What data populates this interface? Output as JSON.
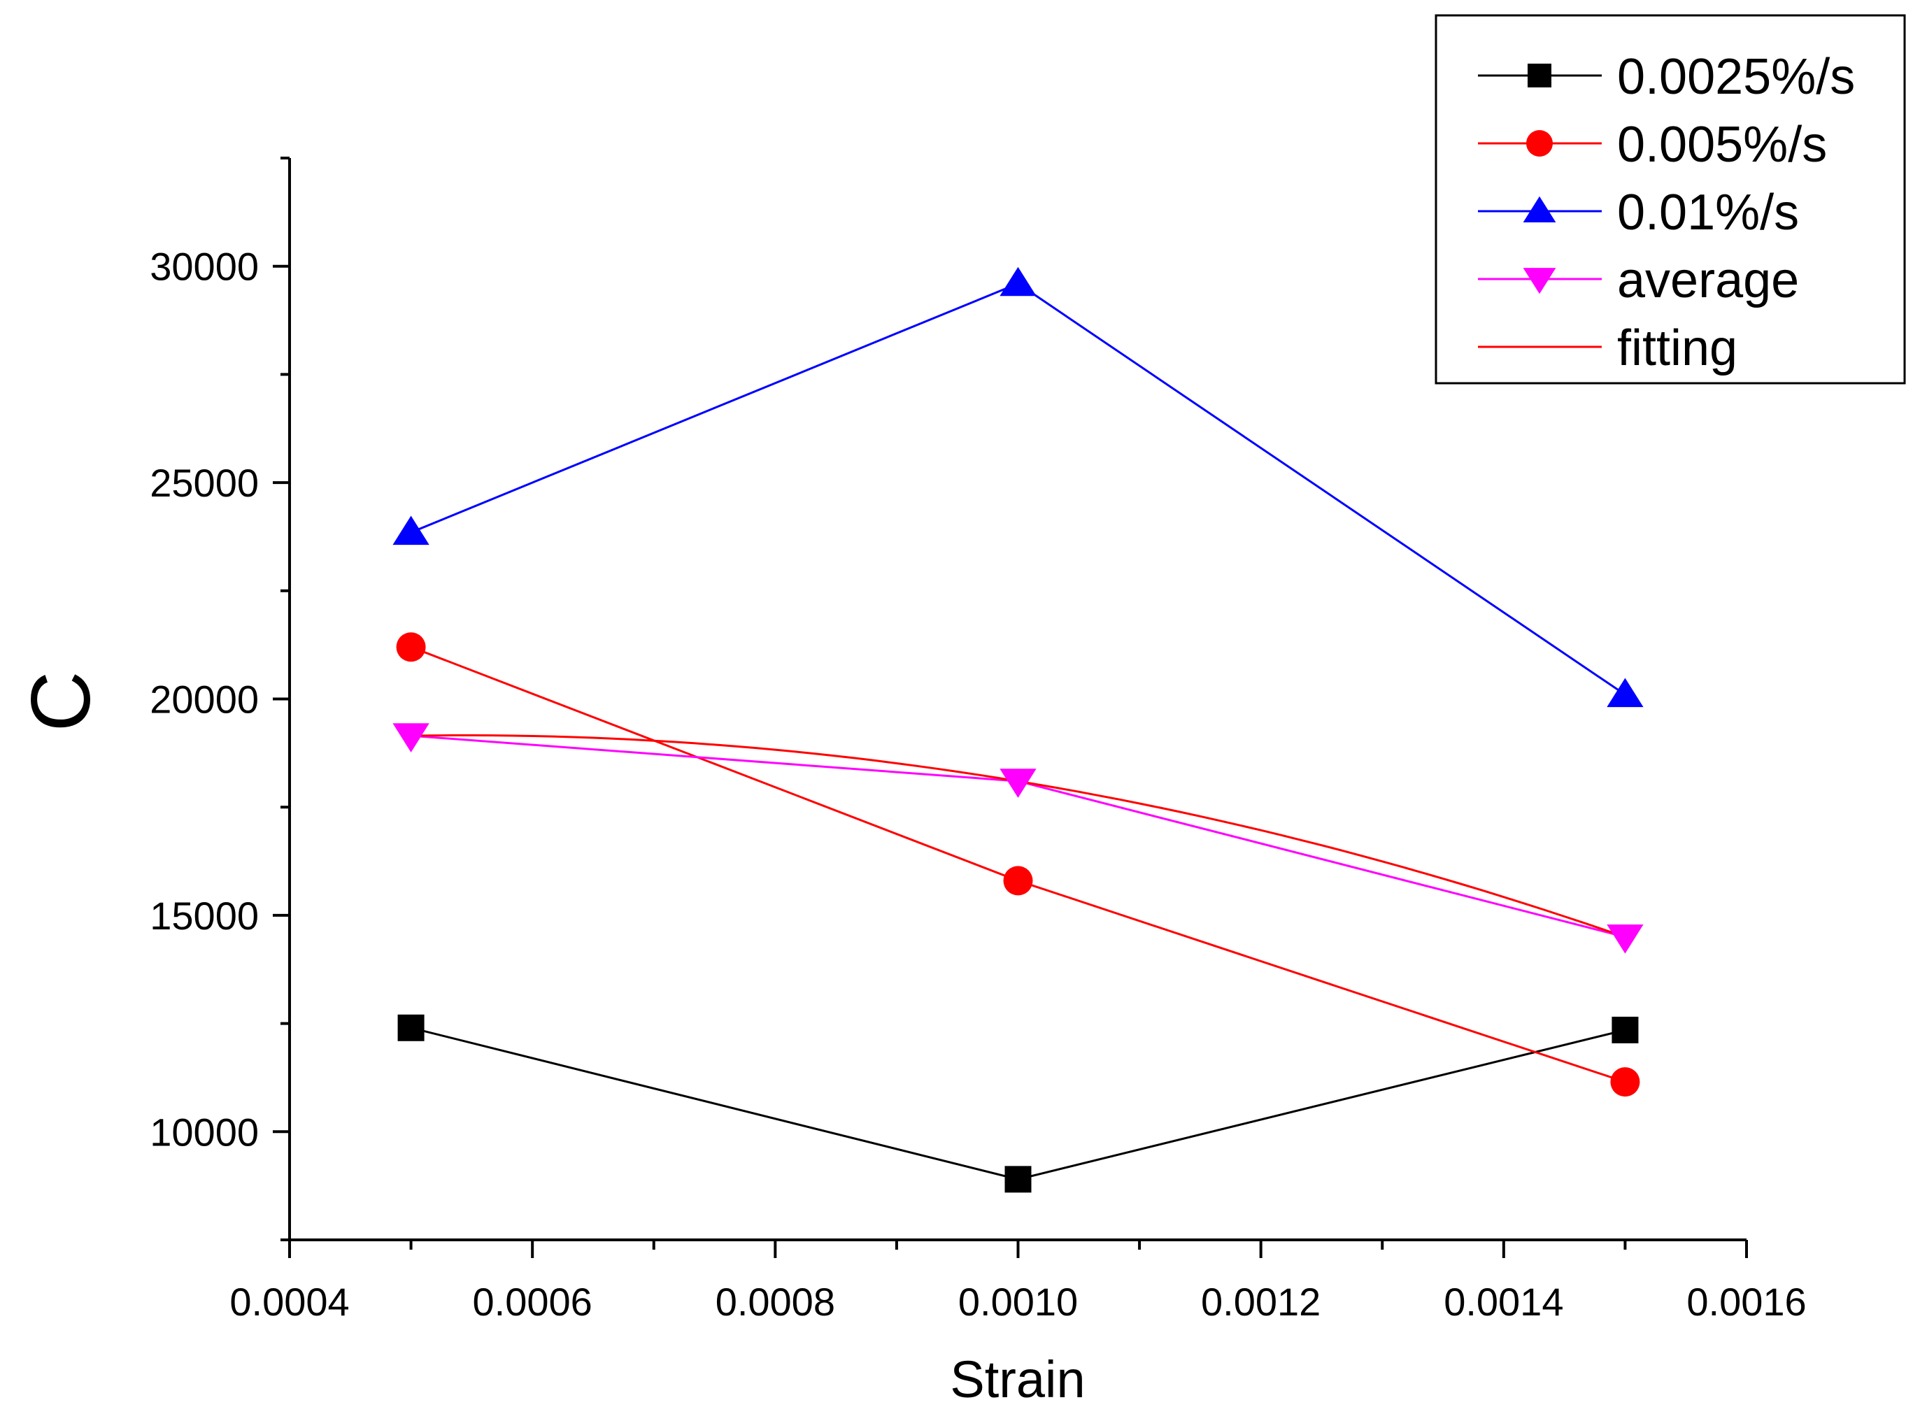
{
  "chart_data": {
    "type": "line",
    "title": "",
    "xlabel": "Strain",
    "ylabel": "C",
    "xlim": [
      0.0004,
      0.0016
    ],
    "ylim": [
      7500,
      32500
    ],
    "x_major_ticks": [
      0.0004,
      0.0006,
      0.0008,
      0.001,
      0.0012,
      0.0014,
      0.0016
    ],
    "x_tick_labels": [
      "0.0004",
      "0.0006",
      "0.0008",
      "0.0010",
      "0.0012",
      "0.0014",
      "0.0016"
    ],
    "y_major_ticks": [
      10000,
      15000,
      20000,
      25000,
      30000
    ],
    "y_tick_labels": [
      "10000",
      "15000",
      "20000",
      "25000",
      "30000"
    ],
    "grid": false,
    "legend_position": "top-right",
    "x": [
      0.0005,
      0.001,
      0.0015
    ],
    "series": [
      {
        "name": "0.0025%/s",
        "values": [
          12400,
          8900,
          12350
        ],
        "color": "#000000",
        "marker": "square"
      },
      {
        "name": "0.005%/s",
        "values": [
          21200,
          15800,
          11150
        ],
        "color": "#ff0000",
        "marker": "circle"
      },
      {
        "name": "0.01%/s",
        "values": [
          23850,
          29600,
          20100
        ],
        "color": "#0000ff",
        "marker": "triangle-up"
      },
      {
        "name": "average",
        "values": [
          19150,
          18100,
          14500
        ],
        "color": "#ff00ff",
        "marker": "triangle-down"
      },
      {
        "name": "fitting",
        "type": "curve",
        "values": [
          19150,
          18100,
          14500
        ],
        "color": "#ff0000",
        "marker": "none"
      }
    ]
  }
}
